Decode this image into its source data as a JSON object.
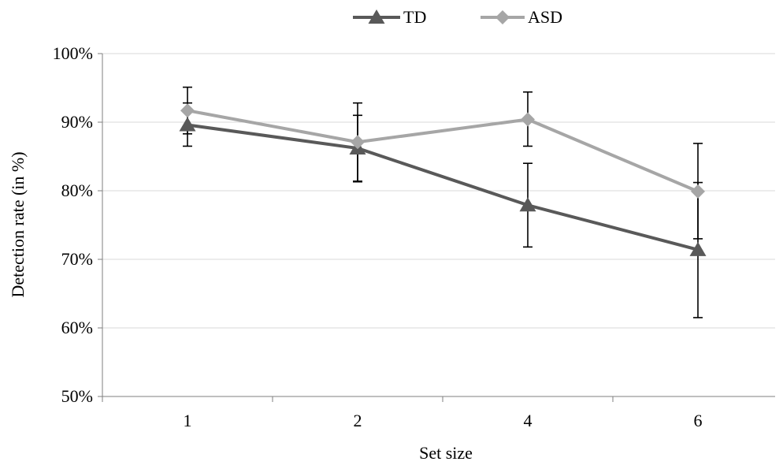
{
  "chart_data": {
    "type": "line",
    "title": "",
    "xlabel": "Set size",
    "ylabel": "Detection rate (in %)",
    "categories": [
      "1",
      "2",
      "4",
      "6"
    ],
    "ylim": [
      50,
      100
    ],
    "yticks": [
      50,
      60,
      70,
      80,
      90,
      100
    ],
    "ytick_labels": [
      "50%",
      "60%",
      "70%",
      "80%",
      "90%",
      "100%"
    ],
    "grid": true,
    "legend_position": "top-center",
    "series": [
      {
        "name": "TD",
        "marker": "triangle",
        "color": "#595959",
        "values": [
          89.6,
          86.2,
          77.9,
          71.4
        ],
        "error_low": [
          86.5,
          81.4,
          71.8,
          61.5
        ],
        "error_high": [
          92.8,
          91.0,
          84.0,
          81.2
        ]
      },
      {
        "name": "ASD",
        "marker": "diamond",
        "color": "#a6a6a6",
        "values": [
          91.7,
          87.1,
          90.4,
          79.9
        ],
        "error_low": [
          88.3,
          81.3,
          86.5,
          73.0
        ],
        "error_high": [
          95.1,
          92.8,
          94.4,
          86.9
        ]
      }
    ]
  }
}
